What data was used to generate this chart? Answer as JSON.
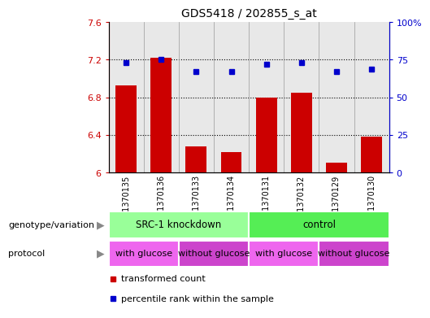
{
  "title": "GDS5418 / 202855_s_at",
  "samples": [
    "GSM1370135",
    "GSM1370136",
    "GSM1370133",
    "GSM1370134",
    "GSM1370131",
    "GSM1370132",
    "GSM1370129",
    "GSM1370130"
  ],
  "transformed_count": [
    6.93,
    7.22,
    6.28,
    6.22,
    6.8,
    6.85,
    6.1,
    6.38
  ],
  "percentile_rank": [
    73,
    75,
    67,
    67,
    72,
    73,
    67,
    69
  ],
  "ylim_left": [
    6.0,
    7.6
  ],
  "ylim_right": [
    0,
    100
  ],
  "yticks_left": [
    6.0,
    6.4,
    6.8,
    7.2,
    7.6
  ],
  "yticks_left_labels": [
    "6",
    "6.4",
    "6.8",
    "7.2",
    "7.6"
  ],
  "yticks_right": [
    0,
    25,
    50,
    75,
    100
  ],
  "yticks_right_labels": [
    "0",
    "25",
    "50",
    "75",
    "100%"
  ],
  "bar_color": "#cc0000",
  "dot_color": "#0000cc",
  "bar_width": 0.6,
  "genotype_groups": [
    {
      "label": "SRC-1 knockdown",
      "start": 0,
      "end": 4,
      "color": "#99ff99"
    },
    {
      "label": "control",
      "start": 4,
      "end": 8,
      "color": "#55ee55"
    }
  ],
  "protocol_groups": [
    {
      "label": "with glucose",
      "start": 0,
      "end": 2,
      "color": "#ee66ee"
    },
    {
      "label": "without glucose",
      "start": 2,
      "end": 4,
      "color": "#cc44cc"
    },
    {
      "label": "with glucose",
      "start": 4,
      "end": 6,
      "color": "#ee66ee"
    },
    {
      "label": "without glucose",
      "start": 6,
      "end": 8,
      "color": "#cc44cc"
    }
  ],
  "legend_items": [
    {
      "label": "transformed count",
      "color": "#cc0000"
    },
    {
      "label": "percentile rank within the sample",
      "color": "#0000cc"
    }
  ],
  "fig_bg_color": "#ffffff",
  "plot_bg_color": "#e8e8e8",
  "left_label_color": "#cc0000",
  "right_label_color": "#0000cc",
  "genotype_label": "genotype/variation",
  "protocol_label": "protocol",
  "arrow_color": "#888888"
}
